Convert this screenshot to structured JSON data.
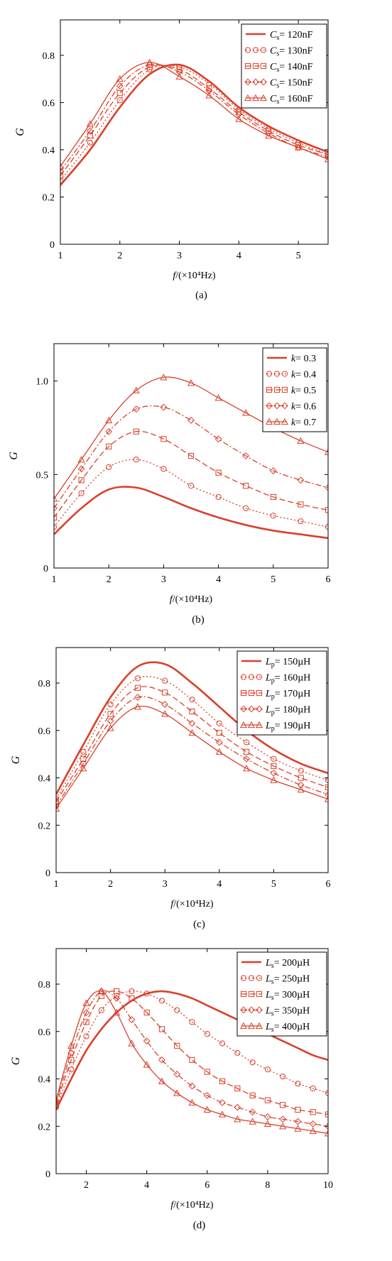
{
  "chart_data": [
    {
      "type": "line",
      "panel_label": "(a)",
      "xlabel": "f/(×10⁴Hz)",
      "ylabel": "G",
      "xlim": [
        1,
        5.5
      ],
      "ylim": [
        0,
        0.95
      ],
      "xticks": [
        1,
        2,
        3,
        4,
        5
      ],
      "yticks": [
        0,
        0.2,
        0.4,
        0.6,
        0.8
      ],
      "grid": false,
      "legend_position": "top-right",
      "x": [
        1,
        1.5,
        2,
        2.5,
        3,
        3.5,
        4,
        4.5,
        5,
        5.5
      ],
      "series": [
        {
          "name": "Cs = 120nF",
          "values": [
            0.25,
            0.4,
            0.58,
            0.72,
            0.76,
            0.69,
            0.58,
            0.5,
            0.44,
            0.39
          ]
        },
        {
          "name": "Cs = 130nF",
          "values": [
            0.27,
            0.43,
            0.61,
            0.74,
            0.75,
            0.68,
            0.57,
            0.49,
            0.43,
            0.38
          ]
        },
        {
          "name": "Cs = 140nF",
          "values": [
            0.29,
            0.46,
            0.64,
            0.75,
            0.74,
            0.66,
            0.56,
            0.48,
            0.42,
            0.38
          ]
        },
        {
          "name": "Cs = 150nF",
          "values": [
            0.31,
            0.48,
            0.67,
            0.76,
            0.73,
            0.65,
            0.55,
            0.47,
            0.41,
            0.37
          ]
        },
        {
          "name": "Cs = 160nF",
          "values": [
            0.33,
            0.51,
            0.7,
            0.77,
            0.71,
            0.63,
            0.53,
            0.46,
            0.41,
            0.36
          ]
        }
      ]
    },
    {
      "type": "line",
      "panel_label": "(b)",
      "xlabel": "f/(×10⁴Hz)",
      "ylabel": "G",
      "xlim": [
        1,
        6
      ],
      "ylim": [
        0,
        1.2
      ],
      "xticks": [
        1,
        2,
        3,
        4,
        5,
        6
      ],
      "yticks": [
        0,
        0.5,
        1.0
      ],
      "grid": false,
      "legend_position": "top-right",
      "x": [
        1,
        1.5,
        2,
        2.5,
        3,
        3.5,
        4,
        4.5,
        5,
        5.5,
        6
      ],
      "series": [
        {
          "name": "k = 0.3",
          "values": [
            0.18,
            0.32,
            0.42,
            0.43,
            0.38,
            0.32,
            0.27,
            0.23,
            0.2,
            0.18,
            0.16
          ]
        },
        {
          "name": "k = 0.4",
          "values": [
            0.22,
            0.4,
            0.54,
            0.58,
            0.53,
            0.44,
            0.38,
            0.32,
            0.28,
            0.25,
            0.22
          ]
        },
        {
          "name": "k = 0.5",
          "values": [
            0.27,
            0.47,
            0.65,
            0.73,
            0.69,
            0.6,
            0.51,
            0.44,
            0.38,
            0.34,
            0.31
          ]
        },
        {
          "name": "k = 0.6",
          "values": [
            0.32,
            0.53,
            0.73,
            0.85,
            0.86,
            0.79,
            0.69,
            0.6,
            0.52,
            0.47,
            0.43
          ]
        },
        {
          "name": "k = 0.7",
          "values": [
            0.37,
            0.58,
            0.79,
            0.95,
            1.02,
            0.99,
            0.91,
            0.83,
            0.75,
            0.68,
            0.62
          ]
        }
      ]
    },
    {
      "type": "line",
      "panel_label": "(c)",
      "xlabel": "f/(×10⁴Hz)",
      "ylabel": "G",
      "xlim": [
        1,
        6
      ],
      "ylim": [
        0,
        0.95
      ],
      "xticks": [
        1,
        2,
        3,
        4,
        5,
        6
      ],
      "yticks": [
        0,
        0.2,
        0.4,
        0.6,
        0.8
      ],
      "grid": false,
      "legend_position": "top-right",
      "x": [
        1,
        1.5,
        2,
        2.5,
        3,
        3.5,
        4,
        4.5,
        5,
        5.5,
        6
      ],
      "series": [
        {
          "name": "Lp = 150µH",
          "values": [
            0.33,
            0.54,
            0.74,
            0.87,
            0.88,
            0.8,
            0.7,
            0.6,
            0.52,
            0.46,
            0.42
          ]
        },
        {
          "name": "Lp = 160µH",
          "values": [
            0.31,
            0.51,
            0.71,
            0.82,
            0.81,
            0.73,
            0.63,
            0.55,
            0.48,
            0.43,
            0.39
          ]
        },
        {
          "name": "Lp = 170µH",
          "values": [
            0.3,
            0.48,
            0.67,
            0.78,
            0.76,
            0.68,
            0.59,
            0.51,
            0.45,
            0.4,
            0.36
          ]
        },
        {
          "name": "Lp = 180µH",
          "values": [
            0.28,
            0.46,
            0.64,
            0.74,
            0.71,
            0.63,
            0.55,
            0.48,
            0.42,
            0.37,
            0.33
          ]
        },
        {
          "name": "Lp = 190µH",
          "values": [
            0.27,
            0.44,
            0.61,
            0.7,
            0.67,
            0.59,
            0.51,
            0.44,
            0.39,
            0.35,
            0.31
          ]
        }
      ]
    },
    {
      "type": "line",
      "panel_label": "(d)",
      "xlabel": "f/(×10⁴Hz)",
      "ylabel": "G",
      "xlim": [
        1,
        10
      ],
      "ylim": [
        0,
        0.95
      ],
      "xticks": [
        2,
        4,
        6,
        8,
        10
      ],
      "yticks": [
        0,
        0.2,
        0.4,
        0.6,
        0.8
      ],
      "grid": false,
      "legend_position": "top-right",
      "x": [
        1,
        1.5,
        2,
        2.5,
        3,
        3.5,
        4,
        4.5,
        5,
        5.5,
        6,
        6.5,
        7,
        7.5,
        8,
        8.5,
        9,
        9.5,
        10
      ],
      "series": [
        {
          "name": "Ls = 200µH",
          "values": [
            0.27,
            0.4,
            0.52,
            0.61,
            0.68,
            0.73,
            0.76,
            0.77,
            0.76,
            0.74,
            0.71,
            0.68,
            0.65,
            0.62,
            0.59,
            0.56,
            0.53,
            0.5,
            0.48
          ]
        },
        {
          "name": "Ls = 250µH",
          "values": [
            0.28,
            0.44,
            0.58,
            0.69,
            0.75,
            0.77,
            0.76,
            0.73,
            0.69,
            0.64,
            0.59,
            0.55,
            0.51,
            0.47,
            0.44,
            0.41,
            0.38,
            0.36,
            0.34
          ]
        },
        {
          "name": "Ls = 300µH",
          "values": [
            0.29,
            0.48,
            0.64,
            0.75,
            0.77,
            0.74,
            0.68,
            0.61,
            0.54,
            0.48,
            0.43,
            0.39,
            0.36,
            0.33,
            0.31,
            0.29,
            0.27,
            0.26,
            0.25
          ]
        },
        {
          "name": "Ls = 350µH",
          "values": [
            0.3,
            0.51,
            0.68,
            0.77,
            0.74,
            0.65,
            0.56,
            0.48,
            0.42,
            0.37,
            0.33,
            0.3,
            0.28,
            0.26,
            0.24,
            0.23,
            0.22,
            0.21,
            0.2
          ]
        },
        {
          "name": "Ls = 400µH",
          "values": [
            0.31,
            0.54,
            0.72,
            0.77,
            0.68,
            0.55,
            0.46,
            0.39,
            0.34,
            0.3,
            0.27,
            0.25,
            0.23,
            0.22,
            0.21,
            0.2,
            0.19,
            0.18,
            0.17
          ]
        }
      ]
    }
  ],
  "colors": {
    "line": "#d9412b",
    "axis": "#000000"
  },
  "legend_symbol_names": [
    "plain-line-icon",
    "circle-marker-icon",
    "square-marker-icon",
    "diamond-marker-icon",
    "triangle-marker-icon"
  ]
}
